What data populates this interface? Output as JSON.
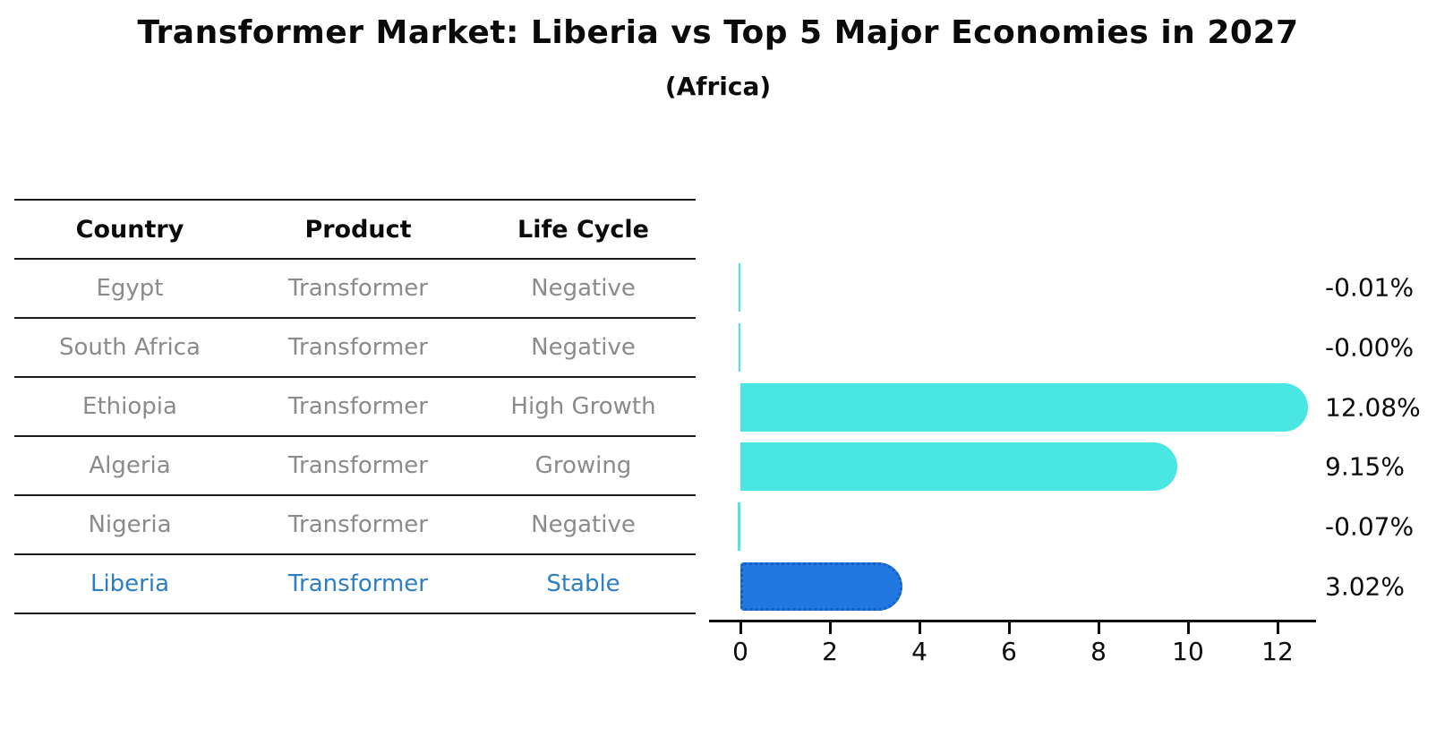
{
  "header": {
    "title": "Transformer Market: Liberia vs Top 5 Major Economies in 2027",
    "subtitle": "(Africa)"
  },
  "table": {
    "headers": [
      "Country",
      "Product",
      "Life Cycle"
    ],
    "rows": [
      {
        "country": "Egypt",
        "product": "Transformer",
        "life_cycle": "Negative"
      },
      {
        "country": "South Africa",
        "product": "Transformer",
        "life_cycle": "Negative"
      },
      {
        "country": "Ethiopia",
        "product": "Transformer",
        "life_cycle": "High Growth"
      },
      {
        "country": "Algeria",
        "product": "Transformer",
        "life_cycle": "Growing"
      },
      {
        "country": "Nigeria",
        "product": "Transformer",
        "life_cycle": "Negative"
      },
      {
        "country": "Liberia",
        "product": "Transformer",
        "life_cycle": "Stable"
      }
    ],
    "highlight_row": "Liberia"
  },
  "chart_data": {
    "type": "bar",
    "orientation": "horizontal",
    "categories": [
      "Egypt",
      "South Africa",
      "Ethiopia",
      "Algeria",
      "Nigeria",
      "Liberia"
    ],
    "values": [
      -0.01,
      -0.0,
      12.08,
      9.15,
      -0.07,
      3.02
    ],
    "value_labels": [
      "-0.01%",
      "-0.00%",
      "12.08%",
      "9.15%",
      "-0.07%",
      "3.02%"
    ],
    "x_ticks": [
      0,
      2,
      4,
      6,
      8,
      10,
      12
    ],
    "xlim": [
      -0.7,
      12.9
    ],
    "grid": false,
    "legend": "none",
    "highlight_category": "Liberia",
    "bar_color_default": "#49e6e2",
    "bar_color_highlight": "#2078e0",
    "highlight_border_color": "#1260c4"
  },
  "colors": {
    "title_text": "#0a0a0a",
    "table_header_text": "#0a0a0a",
    "table_row_text": "#8b8b8b",
    "highlight_text": "#2e7ec2",
    "axis": "#0a0a0a"
  }
}
